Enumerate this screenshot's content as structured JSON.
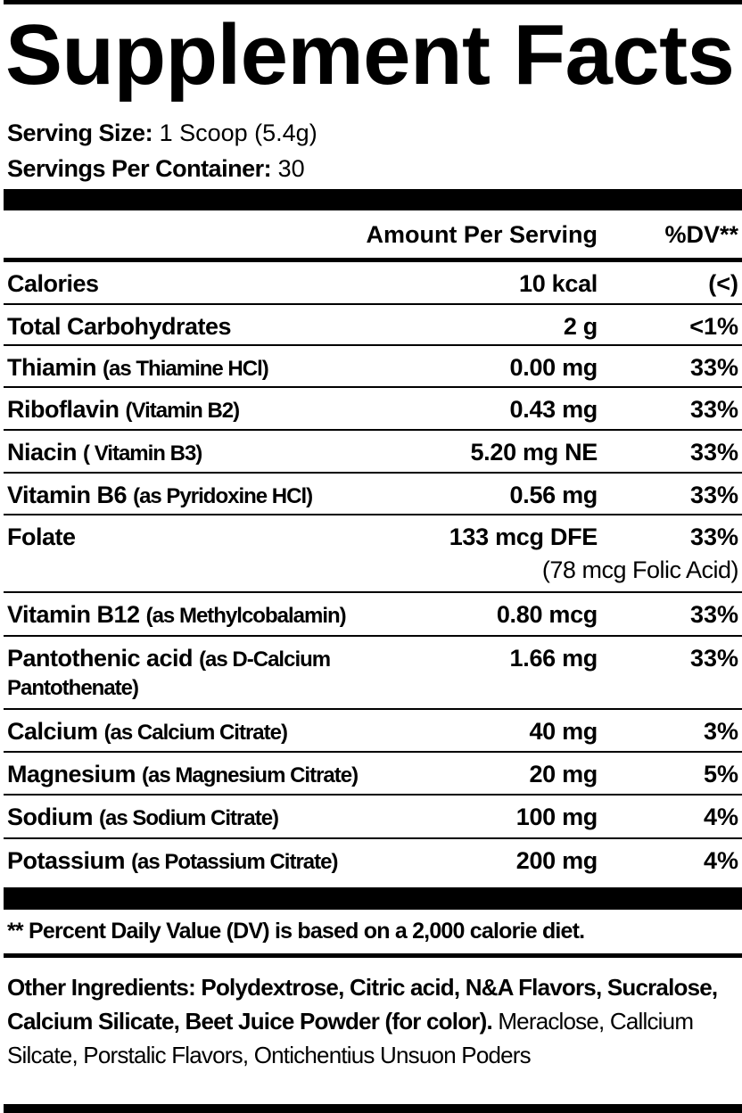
{
  "title": "Supplement Facts",
  "serving": [
    {
      "label": "Serving Size:",
      "value": "1 Scoop (5.4g)"
    },
    {
      "label": "Servings Per Container:",
      "value": "30"
    }
  ],
  "table": {
    "header": {
      "amount": "Amount Per Serving",
      "dv": "%DV**"
    },
    "rows": [
      {
        "name": "Calories",
        "amount": "10 kcal",
        "dv": "(<)"
      },
      {
        "name": "Total Carbohydrates",
        "amount": "2 g",
        "dv": "<1%"
      },
      {
        "name": "Thiamin",
        "qualifier": "(as Thiamine HCl)",
        "amount": "0.00 mg",
        "dv": "33%"
      },
      {
        "name": "Riboflavin",
        "qualifier": "(Vitamin B2)",
        "amount": "0.43 mg",
        "dv": "33%"
      },
      {
        "name": "Niacin",
        "qualifier": "( Vitamin B3)",
        "amount": "5.20 mg NE",
        "dv": "33%"
      },
      {
        "name": "Vitamin B6",
        "qualifier": "(as Pyridoxine HCl)",
        "amount": "0.56 mg",
        "dv": "33%"
      },
      {
        "name": "Folate",
        "amount": "133 mcg DFE",
        "dv": "33%",
        "note": "(78 mcg Folic Acid)"
      },
      {
        "name": "Vitamin B12",
        "qualifier": "(as Methylcobalamin)",
        "amount": "0.80 mcg",
        "dv": "33%"
      },
      {
        "name": "Pantothenic acid",
        "qualifier": "(as D-Calcium Pantothenate)",
        "amount": "1.66 mg",
        "dv": "33%"
      },
      {
        "name": "Calcium",
        "qualifier": "(as Calcium Citrate)",
        "amount": "40 mg",
        "dv": "3%"
      },
      {
        "name": "Magnesium",
        "qualifier": "(as Magnesium Citrate)",
        "amount": "20 mg",
        "dv": "5%"
      },
      {
        "name": "Sodium",
        "qualifier": "(as Sodium Citrate)",
        "amount": "100 mg",
        "dv": "4%"
      },
      {
        "name": "Potassium",
        "qualifier": "(as Potassium Citrate)",
        "amount": "200 mg",
        "dv": "4%"
      }
    ]
  },
  "footnote": "** Percent Daily Value (DV) is based on a 2,000 calorie diet.",
  "other_ingredients": {
    "label": "Other Ingredients:",
    "text": "Polydextrose, Citric acid, N&A Flavors, Sucralose, Calcium Silicate, Beet Juice Powder (for color).",
    "extra": "Meraclose, Callcium Silcate, Porstalic Flavors, Ontichentius Unsuon Poders"
  }
}
